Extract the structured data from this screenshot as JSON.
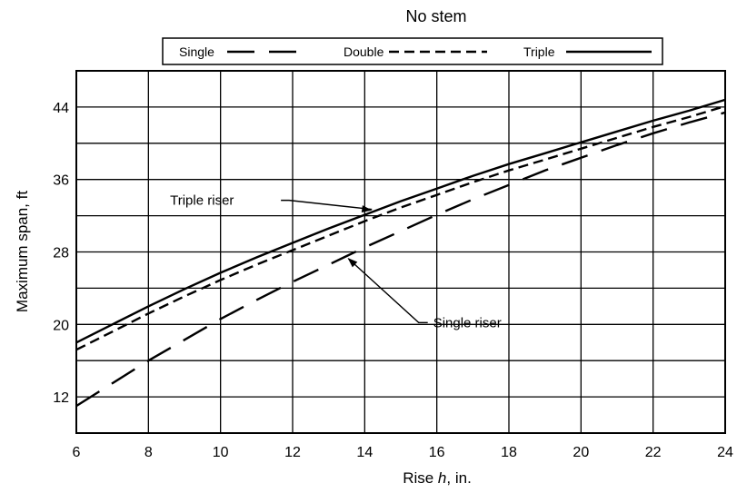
{
  "chart_data": {
    "type": "line",
    "title": "No stem",
    "xlabel_prefix": "Rise ",
    "xlabel_var": "h",
    "xlabel_suffix": ", in.",
    "ylabel": "Maximum span, ft",
    "xlim": [
      6,
      24
    ],
    "ylim": [
      8,
      48
    ],
    "x_ticks": [
      6,
      8,
      10,
      12,
      14,
      16,
      18,
      20,
      22,
      24
    ],
    "y_ticks": [
      12,
      20,
      28,
      36,
      44
    ],
    "grid": true,
    "legend_placement": "top-center",
    "series": [
      {
        "name": "Single",
        "style": "long-dash",
        "x": [
          6,
          7,
          8,
          9,
          10,
          11,
          12,
          13,
          14,
          15,
          16,
          17,
          18,
          19,
          20,
          21,
          22,
          23,
          24
        ],
        "y": [
          11,
          13.5,
          16,
          18.3,
          20.6,
          22.7,
          24.7,
          26.6,
          28.5,
          30.3,
          32.1,
          33.8,
          35.4,
          37,
          38.4,
          39.8,
          41.1,
          42.3,
          43.4
        ]
      },
      {
        "name": "Double",
        "style": "short-dash",
        "x": [
          6,
          7,
          8,
          9,
          10,
          11,
          12,
          13,
          14,
          15,
          16,
          17,
          18,
          19,
          20,
          21,
          22,
          23,
          24
        ],
        "y": [
          17.2,
          19.2,
          21.2,
          23.1,
          24.9,
          26.6,
          28.2,
          29.8,
          31.4,
          32.9,
          34.3,
          35.7,
          37,
          38.2,
          39.4,
          40.6,
          41.8,
          42.9,
          44.1
        ]
      },
      {
        "name": "Triple",
        "style": "solid",
        "x": [
          6,
          7,
          8,
          9,
          10,
          11,
          12,
          13,
          14,
          15,
          16,
          17,
          18,
          19,
          20,
          21,
          22,
          23,
          24
        ],
        "y": [
          18,
          20,
          22,
          23.9,
          25.7,
          27.4,
          29,
          30.6,
          32.1,
          33.6,
          35,
          36.4,
          37.7,
          38.9,
          40.1,
          41.3,
          42.5,
          43.6,
          44.8
        ]
      }
    ],
    "annotations": [
      {
        "text": "Triple riser",
        "target_series": "Triple",
        "target_x": 14.2,
        "label_x": 8.6,
        "label_y": 33.2
      },
      {
        "text": "Single riser",
        "target_series": "Single",
        "target_x": 13.5,
        "label_x": 15.9,
        "label_y": 19.7
      }
    ]
  }
}
